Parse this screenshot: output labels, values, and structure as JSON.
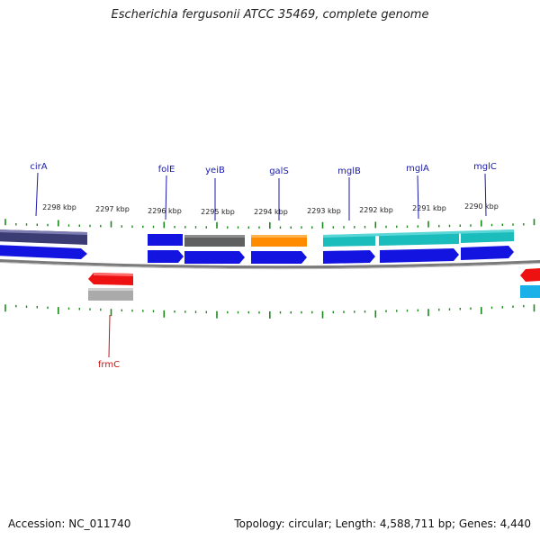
{
  "title": "Escherichia fergusonii ATCC 35469, complete genome",
  "footer": {
    "accession": "Accession: NC_011740",
    "summary": "Topology: circular; Length: 4,588,711 bp; Genes: 4,440"
  },
  "colors": {
    "backbone": "#888888",
    "tick": "#1a8a1a",
    "label_forward": "#1a1aa8",
    "label_reverse": "#cc1111",
    "cds_blue": "#1414e0",
    "red": "#ee1111",
    "gray": "#aaaaaa",
    "slate": "#3c3c74",
    "dark_gray": "#606060",
    "orange": "#ff8c00",
    "teal": "#1bbcbc"
  },
  "scale_labels": [
    "2298 kbp",
    "2297 kbp",
    "2296 kbp",
    "2295 kbp",
    "2294 kbp",
    "2293 kbp",
    "2292 kbp",
    "2291 kbp",
    "2290 kbp"
  ],
  "genes_forward": [
    "cirA",
    "folE",
    "yeiB",
    "galS",
    "mglB",
    "mglA",
    "mglC"
  ],
  "genes_reverse": [
    "frmC"
  ]
}
